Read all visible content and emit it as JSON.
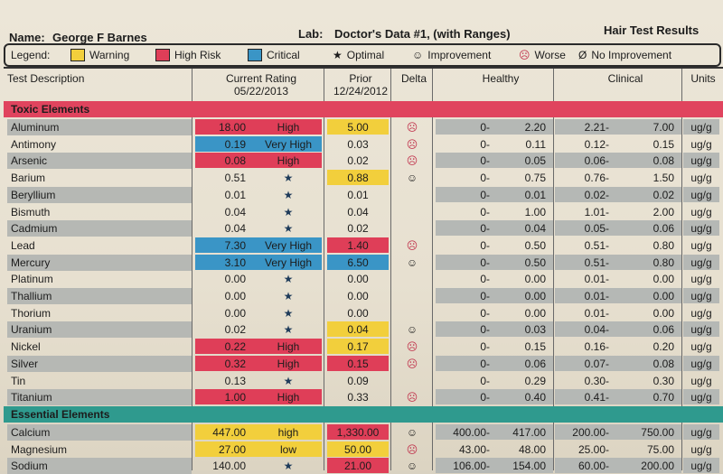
{
  "header": {
    "name_label": "Name:",
    "name": "George F Barnes",
    "lab_label": "Lab:",
    "lab": "Doctor's Data #1, (with Ranges)",
    "report": "Hair Test Results"
  },
  "legend": {
    "label": "Legend:",
    "warning": "Warning",
    "high_risk": "High Risk",
    "critical": "Critical",
    "optimal": "Optimal",
    "improvement": "Improvement",
    "worse": "Worse",
    "no_improvement": "No Improvement",
    "colors": {
      "warning": "#f2cf3c",
      "high_risk": "#df3e58",
      "critical": "#3a95c6"
    }
  },
  "columns": {
    "test": "Test Description",
    "current": "Current Rating",
    "current_date": "05/22/2013",
    "prior": "Prior",
    "prior_date": "12/24/2012",
    "delta": "Delta",
    "healthy": "Healthy",
    "clinical": "Clinical",
    "units": "Units"
  },
  "sections": {
    "toxic": "Toxic Elements",
    "essential": "Essential Elements"
  },
  "toxic_rows": [
    {
      "name": "Aluminum",
      "cur": "18.00",
      "rating": "High",
      "prior": "5.00",
      "delta": "☹",
      "hl": "0-",
      "hh": "2.20",
      "cl": "2.21-",
      "ch": "7.00",
      "unit": "ug/g",
      "curc": "rr",
      "pc": "y"
    },
    {
      "name": "Antimony",
      "cur": "0.19",
      "rating": "Very High",
      "prior": "0.03",
      "delta": "☹",
      "hl": "0-",
      "hh": "0.11",
      "cl": "0.12-",
      "ch": "0.15",
      "unit": "ug/g",
      "curc": "bb",
      "pc": ""
    },
    {
      "name": "Arsenic",
      "cur": "0.08",
      "rating": "High",
      "prior": "0.02",
      "delta": "☹",
      "hl": "0-",
      "hh": "0.05",
      "cl": "0.06-",
      "ch": "0.08",
      "unit": "ug/g",
      "curc": "rr",
      "pc": ""
    },
    {
      "name": "Barium",
      "cur": "0.51",
      "rating": "★",
      "prior": "0.88",
      "delta": "☺",
      "hl": "0-",
      "hh": "0.75",
      "cl": "0.76-",
      "ch": "1.50",
      "unit": "ug/g",
      "curc": "",
      "pc": "y"
    },
    {
      "name": "Beryllium",
      "cur": "0.01",
      "rating": "★",
      "prior": "0.01",
      "delta": "",
      "hl": "0-",
      "hh": "0.01",
      "cl": "0.02-",
      "ch": "0.02",
      "unit": "ug/g",
      "curc": "",
      "pc": ""
    },
    {
      "name": "Bismuth",
      "cur": "0.04",
      "rating": "★",
      "prior": "0.04",
      "delta": "",
      "hl": "0-",
      "hh": "1.00",
      "cl": "1.01-",
      "ch": "2.00",
      "unit": "ug/g",
      "curc": "",
      "pc": ""
    },
    {
      "name": "Cadmium",
      "cur": "0.04",
      "rating": "★",
      "prior": "0.02",
      "delta": "",
      "hl": "0-",
      "hh": "0.04",
      "cl": "0.05-",
      "ch": "0.06",
      "unit": "ug/g",
      "curc": "",
      "pc": ""
    },
    {
      "name": "Lead",
      "cur": "7.30",
      "rating": "Very High",
      "prior": "1.40",
      "delta": "☹",
      "hl": "0-",
      "hh": "0.50",
      "cl": "0.51-",
      "ch": "0.80",
      "unit": "ug/g",
      "curc": "bb",
      "pc": "rr"
    },
    {
      "name": "Mercury",
      "cur": "3.10",
      "rating": "Very High",
      "prior": "6.50",
      "delta": "☺",
      "hl": "0-",
      "hh": "0.50",
      "cl": "0.51-",
      "ch": "0.80",
      "unit": "ug/g",
      "curc": "bb",
      "pc": "bb"
    },
    {
      "name": "Platinum",
      "cur": "0.00",
      "rating": "★",
      "prior": "0.00",
      "delta": "",
      "hl": "0-",
      "hh": "0.00",
      "cl": "0.01-",
      "ch": "0.00",
      "unit": "ug/g",
      "curc": "",
      "pc": ""
    },
    {
      "name": "Thallium",
      "cur": "0.00",
      "rating": "★",
      "prior": "0.00",
      "delta": "",
      "hl": "0-",
      "hh": "0.00",
      "cl": "0.01-",
      "ch": "0.00",
      "unit": "ug/g",
      "curc": "",
      "pc": ""
    },
    {
      "name": "Thorium",
      "cur": "0.00",
      "rating": "★",
      "prior": "0.00",
      "delta": "",
      "hl": "0-",
      "hh": "0.00",
      "cl": "0.01-",
      "ch": "0.00",
      "unit": "ug/g",
      "curc": "",
      "pc": ""
    },
    {
      "name": "Uranium",
      "cur": "0.02",
      "rating": "★",
      "prior": "0.04",
      "delta": "☺",
      "hl": "0-",
      "hh": "0.03",
      "cl": "0.04-",
      "ch": "0.06",
      "unit": "ug/g",
      "curc": "",
      "pc": "y"
    },
    {
      "name": "Nickel",
      "cur": "0.22",
      "rating": "High",
      "prior": "0.17",
      "delta": "☹",
      "hl": "0-",
      "hh": "0.15",
      "cl": "0.16-",
      "ch": "0.20",
      "unit": "ug/g",
      "curc": "rr",
      "pc": "y"
    },
    {
      "name": "Silver",
      "cur": "0.32",
      "rating": "High",
      "prior": "0.15",
      "delta": "☹",
      "hl": "0-",
      "hh": "0.06",
      "cl": "0.07-",
      "ch": "0.08",
      "unit": "ug/g",
      "curc": "rr",
      "pc": "rr"
    },
    {
      "name": "Tin",
      "cur": "0.13",
      "rating": "★",
      "prior": "0.09",
      "delta": "",
      "hl": "0-",
      "hh": "0.29",
      "cl": "0.30-",
      "ch": "0.30",
      "unit": "ug/g",
      "curc": "",
      "pc": ""
    },
    {
      "name": "Titanium",
      "cur": "1.00",
      "rating": "High",
      "prior": "0.33",
      "delta": "☹",
      "hl": "0-",
      "hh": "0.40",
      "cl": "0.41-",
      "ch": "0.70",
      "unit": "ug/g",
      "curc": "rr",
      "pc": ""
    }
  ],
  "essential_rows": [
    {
      "name": "Calcium",
      "cur": "447.00",
      "rating": "high",
      "prior": "1,330.00",
      "delta": "☺",
      "hl": "400.00-",
      "hh": "417.00",
      "cl": "200.00-",
      "ch": "750.00",
      "unit": "ug/g",
      "curc": "y",
      "pc": "rr"
    },
    {
      "name": "Magnesium",
      "cur": "27.00",
      "rating": "low",
      "prior": "50.00",
      "delta": "☹",
      "hl": "43.00-",
      "hh": "48.00",
      "cl": "25.00-",
      "ch": "75.00",
      "unit": "ug/g",
      "curc": "y",
      "pc": "y"
    },
    {
      "name": "Sodium",
      "cur": "140.00",
      "rating": "★",
      "prior": "21.00",
      "delta": "☺",
      "hl": "106.00-",
      "hh": "154.00",
      "cl": "60.00-",
      "ch": "200.00",
      "unit": "ug/g",
      "curc": "",
      "pc": "rr"
    }
  ]
}
